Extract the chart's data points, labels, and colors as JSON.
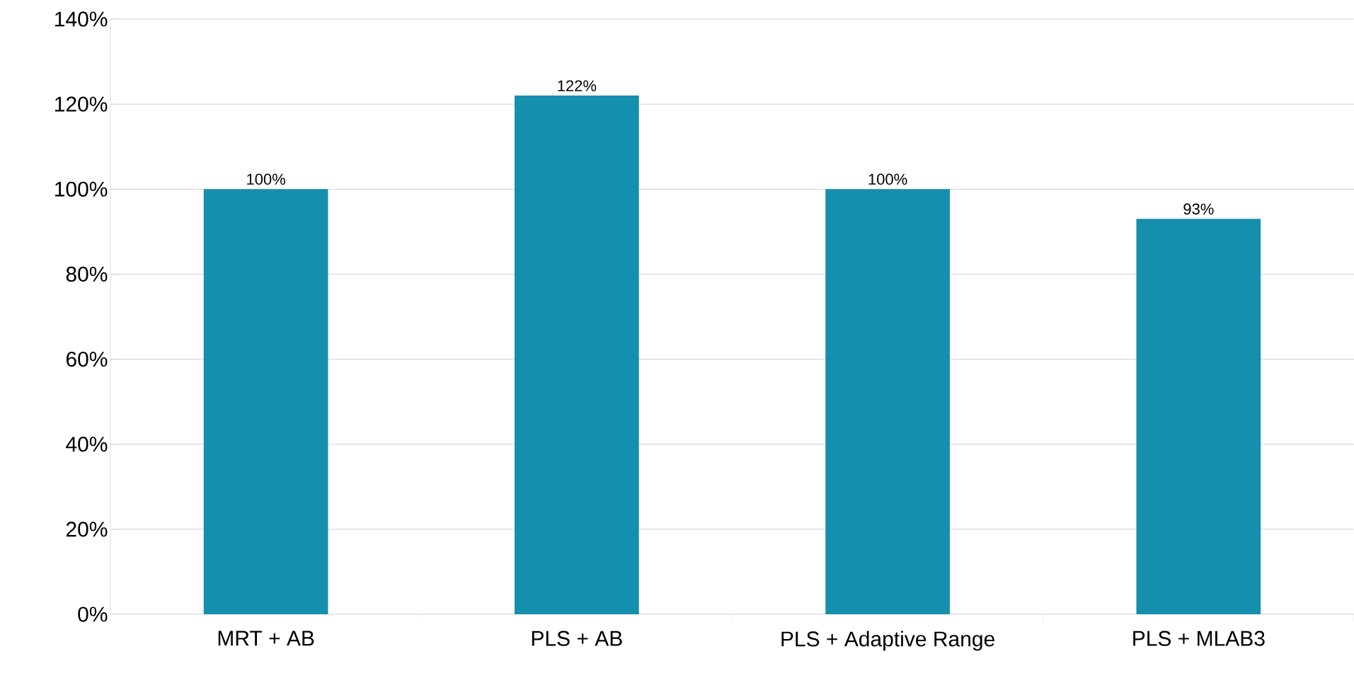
{
  "chart_data": {
    "type": "bar",
    "categories": [
      "MRT + AB",
      "PLS + AB",
      "PLS + Adaptive Range",
      "PLS + MLAB3"
    ],
    "values": [
      100,
      122,
      100,
      93
    ],
    "value_labels": [
      "100%",
      "122%",
      "100%",
      "93%"
    ],
    "color": "#148fad",
    "ylim": [
      0,
      140
    ],
    "yticks": [
      {
        "value": 0,
        "label": "0%"
      },
      {
        "value": 20,
        "label": "20%"
      },
      {
        "value": 40,
        "label": "40%"
      },
      {
        "value": 60,
        "label": "60%"
      },
      {
        "value": 80,
        "label": "80%"
      },
      {
        "value": 100,
        "label": "100%"
      },
      {
        "value": 120,
        "label": "120%"
      },
      {
        "value": 140,
        "label": "140%"
      }
    ],
    "grid": "y"
  }
}
